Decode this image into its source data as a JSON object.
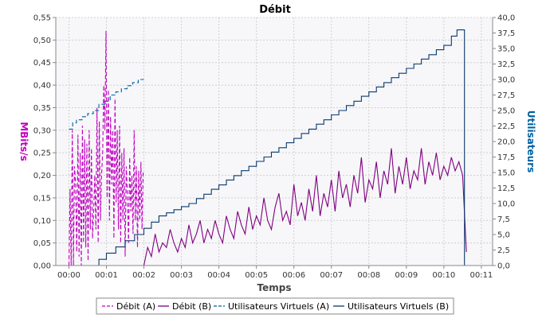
{
  "chart_data": {
    "type": "line",
    "title": "Débit",
    "xlabel": "Temps",
    "ylabel_left": "MBits/s",
    "ylabel_right": "Utilisateurs",
    "x_ticks": [
      "00:00",
      "00:01",
      "00:02",
      "00:03",
      "00:04",
      "00:05",
      "00:06",
      "00:07",
      "00:08",
      "00:09",
      "00:10",
      "00:11"
    ],
    "x_range_minutes": [
      -0.35,
      11.3
    ],
    "y_left_ticks": [
      "0,00",
      "0,05",
      "0,10",
      "0,15",
      "0,20",
      "0,25",
      "0,30",
      "0,35",
      "0,40",
      "0,45",
      "0,50",
      "0,55"
    ],
    "y_left_range": [
      0,
      0.55
    ],
    "y_right_ticks": [
      "0,0",
      "2,5",
      "5,0",
      "7,5",
      "10,0",
      "12,5",
      "15,0",
      "17,5",
      "20,0",
      "22,5",
      "25,0",
      "27,5",
      "30,0",
      "32,5",
      "35,0",
      "37,5",
      "40,0"
    ],
    "y_right_range": [
      0,
      40
    ],
    "grid": true,
    "legend_position": "bottom",
    "colors": {
      "debit_a": "#c000c0",
      "debit_b": "#800080",
      "users_a": "#0060a0",
      "users_b": "#0a3a6e",
      "plot_bg": "#f7f7f9",
      "grid": "#d0d0d0",
      "left_axis_label": "#c000c0",
      "right_axis_label": "#0060a0"
    },
    "series": [
      {
        "name": "Débit (A)",
        "axis": "left",
        "style": "dashed",
        "x": [
          0.0,
          0.03,
          0.06,
          0.09,
          0.12,
          0.15,
          0.18,
          0.21,
          0.24,
          0.27,
          0.3,
          0.33,
          0.36,
          0.39,
          0.42,
          0.45,
          0.48,
          0.51,
          0.54,
          0.57,
          0.6,
          0.63,
          0.66,
          0.69,
          0.72,
          0.75,
          0.78,
          0.81,
          0.84,
          0.87,
          0.9,
          0.93,
          0.96,
          0.99,
          1.02,
          1.05,
          1.08,
          1.11,
          1.14,
          1.17,
          1.2,
          1.23,
          1.26,
          1.29,
          1.32,
          1.35,
          1.38,
          1.41,
          1.44,
          1.47,
          1.5,
          1.53,
          1.56,
          1.59,
          1.62,
          1.65,
          1.68,
          1.71,
          1.74,
          1.77,
          1.8,
          1.83,
          1.86,
          1.89,
          1.92,
          1.95,
          1.98
        ],
        "values": [
          0.0,
          0.17,
          0.0,
          0.3,
          0.0,
          0.22,
          0.18,
          0.03,
          0.29,
          0.02,
          0.25,
          0.0,
          0.31,
          0.05,
          0.28,
          0.04,
          0.27,
          0.01,
          0.3,
          0.08,
          0.26,
          0.06,
          0.12,
          0.2,
          0.08,
          0.35,
          0.05,
          0.32,
          0.1,
          0.2,
          0.25,
          0.4,
          0.3,
          0.52,
          0.15,
          0.39,
          0.1,
          0.33,
          0.18,
          0.3,
          0.06,
          0.37,
          0.14,
          0.3,
          0.08,
          0.31,
          0.05,
          0.25,
          0.1,
          0.26,
          0.02,
          0.22,
          0.16,
          0.05,
          0.24,
          0.12,
          0.2,
          0.07,
          0.3,
          0.1,
          0.22,
          0.04,
          0.21,
          0.1,
          0.23,
          0.08,
          0.21
        ]
      },
      {
        "name": "Débit (B)",
        "axis": "left",
        "style": "solid",
        "x": [
          2.0,
          2.1,
          2.2,
          2.3,
          2.4,
          2.5,
          2.6,
          2.7,
          2.8,
          2.9,
          3.0,
          3.1,
          3.2,
          3.3,
          3.4,
          3.5,
          3.6,
          3.7,
          3.8,
          3.9,
          4.0,
          4.1,
          4.2,
          4.3,
          4.4,
          4.5,
          4.6,
          4.7,
          4.8,
          4.9,
          5.0,
          5.1,
          5.2,
          5.3,
          5.4,
          5.5,
          5.6,
          5.7,
          5.8,
          5.9,
          6.0,
          6.1,
          6.2,
          6.3,
          6.4,
          6.5,
          6.6,
          6.7,
          6.8,
          6.9,
          7.0,
          7.1,
          7.2,
          7.3,
          7.4,
          7.5,
          7.6,
          7.7,
          7.8,
          7.9,
          8.0,
          8.1,
          8.2,
          8.3,
          8.4,
          8.5,
          8.6,
          8.7,
          8.8,
          8.9,
          9.0,
          9.1,
          9.2,
          9.3,
          9.4,
          9.5,
          9.6,
          9.7,
          9.8,
          9.9,
          10.0,
          10.1,
          10.2,
          10.3,
          10.4,
          10.5,
          10.6
        ],
        "values": [
          0.0,
          0.04,
          0.02,
          0.07,
          0.03,
          0.05,
          0.04,
          0.08,
          0.05,
          0.03,
          0.06,
          0.04,
          0.09,
          0.05,
          0.07,
          0.1,
          0.05,
          0.08,
          0.06,
          0.1,
          0.07,
          0.05,
          0.11,
          0.08,
          0.06,
          0.12,
          0.09,
          0.07,
          0.13,
          0.08,
          0.11,
          0.09,
          0.15,
          0.1,
          0.08,
          0.13,
          0.16,
          0.1,
          0.12,
          0.09,
          0.18,
          0.11,
          0.14,
          0.1,
          0.17,
          0.12,
          0.2,
          0.11,
          0.16,
          0.13,
          0.19,
          0.12,
          0.21,
          0.15,
          0.18,
          0.13,
          0.2,
          0.16,
          0.24,
          0.14,
          0.19,
          0.17,
          0.23,
          0.15,
          0.21,
          0.18,
          0.26,
          0.16,
          0.22,
          0.18,
          0.24,
          0.17,
          0.21,
          0.19,
          0.26,
          0.18,
          0.23,
          0.2,
          0.25,
          0.19,
          0.22,
          0.2,
          0.24,
          0.21,
          0.23,
          0.2,
          0.03
        ]
      },
      {
        "name": "Utilisateurs Virtuels (A)",
        "axis": "right",
        "style": "dashed",
        "step": true,
        "x": [
          0.0,
          0.1,
          0.2,
          0.35,
          0.5,
          0.65,
          0.8,
          0.95,
          1.1,
          1.25,
          1.4,
          1.55,
          1.7,
          1.85,
          2.0
        ],
        "values": [
          22,
          23,
          23.5,
          24,
          24.5,
          25,
          26,
          26.5,
          27.5,
          28,
          28.5,
          29,
          29.5,
          30,
          30
        ]
      },
      {
        "name": "Utilisateurs Virtuels (B)",
        "axis": "right",
        "style": "solid",
        "step": true,
        "x": [
          0.55,
          0.8,
          1.0,
          1.25,
          1.5,
          1.75,
          2.0,
          2.2,
          2.4,
          2.6,
          2.8,
          3.0,
          3.2,
          3.4,
          3.6,
          3.8,
          4.0,
          4.2,
          4.4,
          4.6,
          4.8,
          5.0,
          5.2,
          5.4,
          5.6,
          5.8,
          6.0,
          6.2,
          6.4,
          6.6,
          6.8,
          7.0,
          7.2,
          7.4,
          7.6,
          7.8,
          8.0,
          8.2,
          8.4,
          8.6,
          8.8,
          9.0,
          9.2,
          9.4,
          9.6,
          9.8,
          10.0,
          10.2,
          10.35,
          10.55,
          10.55
        ],
        "values": [
          0,
          1,
          2,
          3,
          4,
          5,
          6,
          7,
          8,
          8.5,
          9,
          9.5,
          10,
          10.8,
          11.5,
          12.3,
          13,
          13.8,
          14.5,
          15.3,
          16,
          16.8,
          17.5,
          18.3,
          19,
          19.8,
          20.5,
          21.3,
          22,
          22.8,
          23.5,
          24.3,
          25,
          25.8,
          26.5,
          27.3,
          28,
          28.8,
          29.5,
          30.3,
          31,
          31.8,
          32.5,
          33.3,
          34,
          34.8,
          35.5,
          37,
          38,
          38,
          0
        ]
      }
    ]
  }
}
